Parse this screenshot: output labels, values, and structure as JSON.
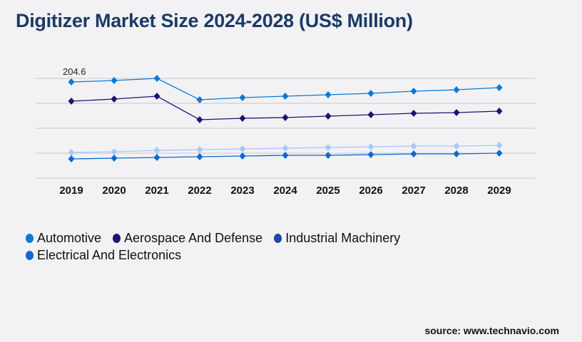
{
  "title": "Digitizer Market Size 2024-2028 (US$ Million)",
  "source": "source: www.technavio.com",
  "chart_data": {
    "type": "line",
    "title": "Digitizer Market Size 2024-2028 (US$ Million)",
    "xlabel": "",
    "ylabel": "",
    "categories": [
      "2019",
      "2020",
      "2021",
      "2022",
      "2023",
      "2024",
      "2025",
      "2026",
      "2027",
      "2028",
      "2029"
    ],
    "ylim": [
      0,
      212.2
    ],
    "grid": true,
    "legend_position": "bottom",
    "annotations": [
      {
        "label": "204.6",
        "series": "Automotive",
        "category": "2019"
      }
    ],
    "series": [
      {
        "name": "Automotive",
        "legend_color": "#0a7ad6",
        "line_color": "#0a7ad6",
        "values": [
          204.6,
          207.6,
          212.2,
          166.7,
          171.3,
          174.3,
          177.3,
          180.4,
          184.9,
          187.9,
          192.5
        ]
      },
      {
        "name": "Aerospace And Defense",
        "legend_color": "#1c1470",
        "line_color": "#1c1470",
        "values": [
          163.7,
          168.2,
          174.3,
          124.3,
          127.3,
          128.8,
          131.9,
          134.9,
          137.9,
          139.4,
          142.5
        ]
      },
      {
        "name": "Industrial Machinery",
        "legend_color": "#1a4aa8",
        "line_color": "#a8c8f8",
        "values": [
          54.6,
          56.1,
          59.1,
          60.6,
          62.1,
          63.6,
          65.2,
          66.7,
          68.2,
          68.2,
          69.7
        ]
      },
      {
        "name": "Electrical And Electronics",
        "legend_color": "#0a6ad0",
        "line_color": "#0a6ad0",
        "values": [
          40.9,
          42.4,
          44.0,
          45.5,
          47.0,
          48.5,
          48.5,
          50.0,
          51.5,
          51.5,
          53.0
        ]
      }
    ]
  }
}
